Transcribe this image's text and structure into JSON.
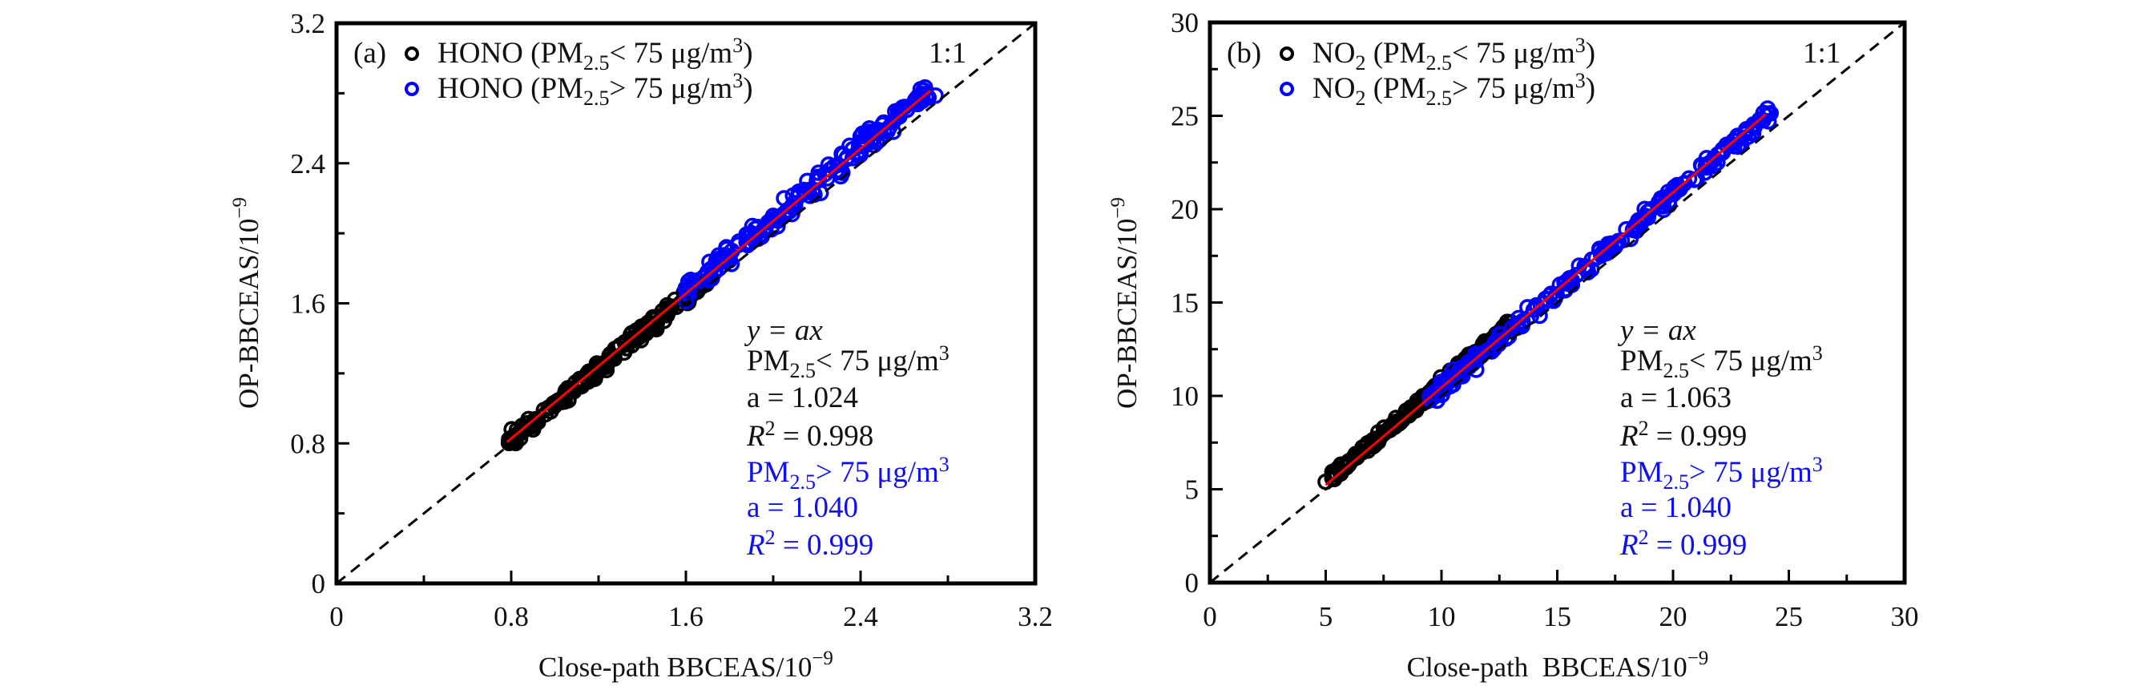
{
  "chart_data": [
    {
      "type": "scatter",
      "panel": "(a)",
      "species": "HONO",
      "xlabel": "Close-path BBCEAS/10",
      "xlabel_exp": "−9",
      "ylabel": "OP-BBCEAS/10",
      "ylabel_exp": "−9",
      "xlim": [
        0,
        3.2
      ],
      "ylim": [
        0,
        3.2
      ],
      "xticks": [
        0,
        0.4,
        0.8,
        1.2,
        1.6,
        2.0,
        2.4,
        2.8,
        3.2
      ],
      "xtick_labels": [
        "0",
        "",
        "0.8",
        "",
        "1.6",
        "",
        "2.4",
        "",
        "3.2"
      ],
      "yticks": [
        0,
        0.4,
        0.8,
        1.2,
        1.6,
        2.0,
        2.4,
        2.8,
        3.2
      ],
      "ytick_labels": [
        "0",
        "",
        "0.8",
        "",
        "1.6",
        "",
        "2.4",
        "",
        "3.2"
      ],
      "grid": false,
      "legend_position": "top-left",
      "reference_line": {
        "label": "1:1",
        "slope": 1,
        "style": "dashed"
      },
      "series": [
        {
          "name": "HONO (PM2.5 < 75 μg/m3)",
          "legend": {
            "main": "HONO (PM",
            "sub": "2.5",
            "rel": "< 75 μg/m",
            "sup": "3",
            "close": ")"
          },
          "color": "#000000",
          "marker": "open-circle",
          "x_range": [
            0.8,
            1.7
          ],
          "slope": 1.024,
          "r2": 0.998,
          "sample_points": [
            [
              0.8,
              0.83
            ],
            [
              0.85,
              0.9
            ],
            [
              0.9,
              0.88
            ],
            [
              0.95,
              0.99
            ],
            [
              1.0,
              1.03
            ],
            [
              1.05,
              1.1
            ],
            [
              1.1,
              1.12
            ],
            [
              1.15,
              1.2
            ],
            [
              1.2,
              1.21
            ],
            [
              1.25,
              1.3
            ],
            [
              1.3,
              1.36
            ],
            [
              1.35,
              1.4
            ],
            [
              1.4,
              1.42
            ],
            [
              1.45,
              1.52
            ],
            [
              1.5,
              1.5
            ],
            [
              1.55,
              1.62
            ],
            [
              1.6,
              1.66
            ],
            [
              1.65,
              1.7
            ]
          ]
        },
        {
          "name": "HONO (PM2.5 > 75 μg/m3)",
          "legend": {
            "main": "HONO (PM",
            "sub": "2.5",
            "rel": "> 75 μg/m",
            "sup": "3",
            "close": ")"
          },
          "color": "#0000ff",
          "marker": "open-circle",
          "x_range": [
            1.6,
            2.72
          ],
          "slope": 1.04,
          "r2": 0.999,
          "sample_points": [
            [
              1.62,
              1.7
            ],
            [
              1.7,
              1.78
            ],
            [
              1.8,
              1.86
            ],
            [
              1.9,
              2.0
            ],
            [
              2.0,
              2.1
            ],
            [
              2.05,
              2.2
            ],
            [
              2.1,
              2.15
            ],
            [
              2.2,
              2.3
            ],
            [
              2.3,
              2.35
            ],
            [
              2.35,
              2.5
            ],
            [
              2.4,
              2.45
            ],
            [
              2.5,
              2.62
            ],
            [
              2.55,
              2.58
            ],
            [
              2.6,
              2.72
            ],
            [
              2.65,
              2.76
            ],
            [
              2.7,
              2.78
            ]
          ]
        }
      ],
      "fit_line": {
        "color": "#ff0000",
        "x_range": [
          0.78,
          2.72
        ],
        "slope": 1.035
      },
      "annotation": {
        "model": "y = ax",
        "group1": {
          "label_main": "PM",
          "label_sub": "2.5",
          "label_rel": "< 75 μg/m",
          "label_sup": "3",
          "a": "a = 1.024",
          "r2_lhs": "R",
          "r2_sup": "2",
          "r2_rhs": " = 0.998"
        },
        "group2": {
          "label_main": "PM",
          "label_sub": "2.5",
          "label_rel": "> 75 μg/m",
          "label_sup": "3",
          "a": "a = 1.040",
          "r2_lhs": "R",
          "r2_sup": "2",
          "r2_rhs": " = 0.999"
        }
      }
    },
    {
      "type": "scatter",
      "panel": "(b)",
      "species": "NO2",
      "xlabel": "Close-path  BBCEAS/10",
      "xlabel_exp": "−9",
      "ylabel": "OP-BBCEAS/10",
      "ylabel_exp": "−9",
      "xlim": [
        0,
        30
      ],
      "ylim": [
        0,
        30
      ],
      "xticks": [
        0,
        2.5,
        5,
        7.5,
        10,
        12.5,
        15,
        17.5,
        20,
        22.5,
        25,
        27.5,
        30
      ],
      "xtick_labels": [
        "0",
        "",
        "5",
        "",
        "10",
        "",
        "15",
        "",
        "20",
        "",
        "25",
        "",
        "30"
      ],
      "yticks": [
        0,
        2.5,
        5,
        7.5,
        10,
        12.5,
        15,
        17.5,
        20,
        22.5,
        25,
        27.5,
        30
      ],
      "ytick_labels": [
        "0",
        "",
        "5",
        "",
        "10",
        "",
        "15",
        "",
        "20",
        "",
        "25",
        "",
        "30"
      ],
      "grid": false,
      "legend_position": "top-left",
      "reference_line": {
        "label": "1:1",
        "slope": 1,
        "style": "dashed"
      },
      "series": [
        {
          "name": "NO2 (PM2.5 < 75 μg/m3)",
          "legend": {
            "main": "NO",
            "main_sub": "2",
            "main2": " (PM",
            "sub": "2.5",
            "rel": "< 75 μg/m",
            "sup": "3",
            "close": ")"
          },
          "color": "#000000",
          "marker": "open-circle",
          "x_range": [
            5.0,
            13.0
          ],
          "slope": 1.063,
          "r2": 0.999,
          "sample_points": [
            [
              5.0,
              5.4
            ],
            [
              5.3,
              5.8
            ],
            [
              5.6,
              6.0
            ],
            [
              6.0,
              6.5
            ],
            [
              6.5,
              7.0
            ],
            [
              7.0,
              7.5
            ],
            [
              7.5,
              8.0
            ],
            [
              8.0,
              8.6
            ],
            [
              8.5,
              9.2
            ],
            [
              9.0,
              9.6
            ],
            [
              9.5,
              10.2
            ],
            [
              10.0,
              10.7
            ],
            [
              10.5,
              11.2
            ],
            [
              11.0,
              11.8
            ],
            [
              11.5,
              12.2
            ],
            [
              12.0,
              12.8
            ],
            [
              12.5,
              13.3
            ],
            [
              13.0,
              13.9
            ]
          ]
        },
        {
          "name": "NO2 (PM2.5 > 75 μg/m3)",
          "legend": {
            "main": "NO",
            "main_sub": "2",
            "main2": " (PM",
            "sub": "2.5",
            "rel": "> 75 μg/m",
            "sup": "3",
            "close": ")"
          },
          "color": "#0000ff",
          "marker": "open-circle",
          "x_range": [
            9.5,
            24.2
          ],
          "slope": 1.04,
          "r2": 0.999,
          "sample_points": [
            [
              9.5,
              10.0
            ],
            [
              10.5,
              10.6
            ],
            [
              11.5,
              11.4
            ],
            [
              12.5,
              13.3
            ],
            [
              13.5,
              14.0
            ],
            [
              14.5,
              15.2
            ],
            [
              15.5,
              16.0
            ],
            [
              16.5,
              17.3
            ],
            [
              17.5,
              18.0
            ],
            [
              18.5,
              19.4
            ],
            [
              19.5,
              20.2
            ],
            [
              20.5,
              21.4
            ],
            [
              21.5,
              22.3
            ],
            [
              22.5,
              23.5
            ],
            [
              23.5,
              24.5
            ],
            [
              24.0,
              25.0
            ]
          ]
        }
      ],
      "fit_line": {
        "color": "#ff0000",
        "x_range": [
          5.0,
          24.0
        ],
        "slope": 1.045
      },
      "annotation": {
        "model": "y = ax",
        "group1": {
          "label_main": "PM",
          "label_sub": "2.5",
          "label_rel": "< 75 μg/m",
          "label_sup": "3",
          "a": "a = 1.063",
          "r2_lhs": "R",
          "r2_sup": "2",
          "r2_rhs": " = 0.999"
        },
        "group2": {
          "label_main": "PM",
          "label_sub": "2.5",
          "label_rel": "> 75 μg/m",
          "label_sup": "3",
          "a": "a = 1.040",
          "r2_lhs": "R",
          "r2_sup": "2",
          "r2_rhs": " = 0.999"
        }
      }
    }
  ],
  "colors": {
    "low_pm": "#000000",
    "high_pm": "#0000ff",
    "annotation_blue": "#1010ee",
    "fit_line": "#ff0000",
    "axis": "#000000"
  }
}
